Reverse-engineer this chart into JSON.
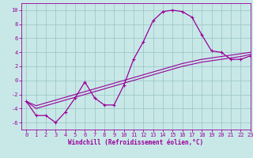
{
  "x": [
    0,
    1,
    2,
    3,
    4,
    5,
    6,
    7,
    8,
    9,
    10,
    11,
    12,
    13,
    14,
    15,
    16,
    17,
    18,
    19,
    20,
    21,
    22,
    23
  ],
  "y_main": [
    -3,
    -5,
    -5,
    -6,
    -4.5,
    -2.5,
    -0.2,
    -2.5,
    -3.5,
    -3.5,
    -0.7,
    3,
    5.5,
    8.5,
    9.8,
    10,
    9.8,
    9,
    6.5,
    4.2,
    4,
    3,
    3,
    3.5
  ],
  "y_linear1": [
    -3.0,
    -3.6,
    -3.2,
    -2.8,
    -2.4,
    -2.0,
    -1.6,
    -1.2,
    -0.8,
    -0.4,
    0.0,
    0.4,
    0.8,
    1.2,
    1.6,
    2.0,
    2.4,
    2.7,
    3.0,
    3.2,
    3.4,
    3.6,
    3.8,
    4.0
  ],
  "y_linear2": [
    -3.0,
    -4.0,
    -3.6,
    -3.2,
    -2.8,
    -2.4,
    -2.0,
    -1.6,
    -1.2,
    -0.8,
    -0.4,
    0.0,
    0.4,
    0.8,
    1.2,
    1.6,
    2.0,
    2.3,
    2.6,
    2.8,
    3.0,
    3.2,
    3.4,
    3.7
  ],
  "bg_color": "#c8e8e8",
  "grid_color": "#a0c8c8",
  "line_color": "#990099",
  "xlabel": "Windchill (Refroidissement éolien,°C)",
  "ylim": [
    -7,
    11
  ],
  "xlim": [
    -0.5,
    23
  ],
  "yticks": [
    -6,
    -4,
    -2,
    0,
    2,
    4,
    6,
    8,
    10
  ],
  "xticks": [
    0,
    1,
    2,
    3,
    4,
    5,
    6,
    7,
    8,
    9,
    10,
    11,
    12,
    13,
    14,
    15,
    16,
    17,
    18,
    19,
    20,
    21,
    22,
    23
  ],
  "xlabel_fontsize": 5.5,
  "tick_fontsize": 5.0
}
